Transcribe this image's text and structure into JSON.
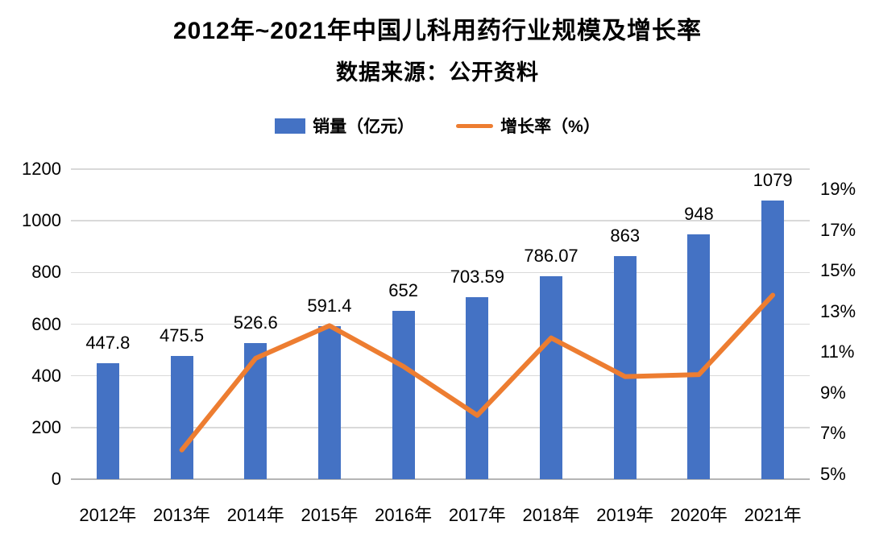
{
  "title": "2012年~2021年中国儿科用药行业规模及增长率",
  "subtitle": "数据来源：公开资料",
  "legend": [
    {
      "label": "销量（亿元）",
      "type": "bar",
      "color": "#4472C4"
    },
    {
      "label": "增长率（%）",
      "type": "line",
      "color": "#ED7D31"
    }
  ],
  "colors": {
    "bar": "#4472C4",
    "line": "#ED7D31",
    "grid": "#D9D9D9",
    "axis_line": "#B5B5B5",
    "text": "#000000"
  },
  "chart_data": {
    "type": "bar",
    "subtype": "bar+line combo, dual y-axes",
    "title": "2012年~2021年中国儿科用药行业规模及增长率",
    "subtitle": "数据来源：公开资料",
    "categories": [
      "2012年",
      "2013年",
      "2014年",
      "2015年",
      "2016年",
      "2017年",
      "2018年",
      "2019年",
      "2020年",
      "2021年"
    ],
    "series": [
      {
        "name": "销量（亿元）",
        "type": "bar",
        "axis": "left",
        "color": "#4472C4",
        "values": [
          447.8,
          475.5,
          526.6,
          591.4,
          652,
          703.59,
          786.07,
          863,
          948,
          1079
        ],
        "data_labels_shown": true
      },
      {
        "name": "增长率（%）",
        "type": "line",
        "axis": "right",
        "color": "#ED7D31",
        "values": [
          null,
          6.2,
          10.7,
          12.3,
          10.3,
          7.9,
          11.7,
          9.8,
          9.9,
          13.8
        ],
        "data_labels_shown": false
      }
    ],
    "left_axis": {
      "min": 0,
      "max": 1200,
      "step": 200,
      "tick_labels": [
        "0",
        "200",
        "400",
        "600",
        "800",
        "1000",
        "1200"
      ]
    },
    "right_axis": {
      "min": 5,
      "max": 19,
      "step": 2,
      "unit": "%",
      "tick_labels": [
        "5%",
        "7%",
        "9%",
        "11%",
        "13%",
        "15%",
        "17%",
        "19%"
      ]
    },
    "grid": true,
    "legend_position": "top"
  }
}
